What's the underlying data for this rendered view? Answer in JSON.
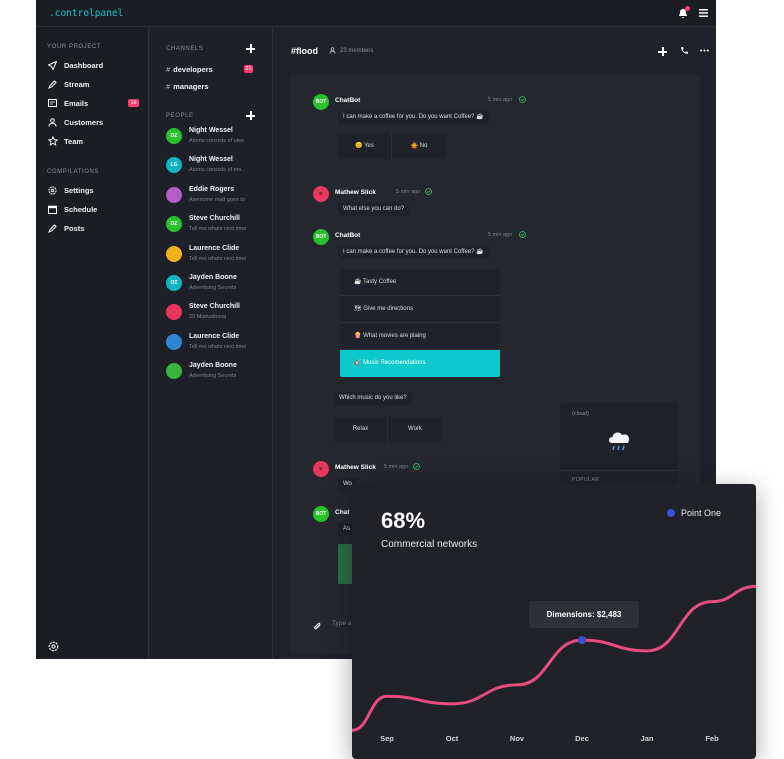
{
  "app": {
    "brand": ".controlpanel",
    "sidebar": {
      "section1": "YOUR PROJECT",
      "items1": [
        {
          "label": "Dashboard",
          "icon": "send-icon"
        },
        {
          "label": "Stream",
          "icon": "pencil-icon"
        },
        {
          "label": "Emails",
          "icon": "mail-icon",
          "badge": "16"
        },
        {
          "label": "Customers",
          "icon": "users-icon"
        },
        {
          "label": "Team",
          "icon": "star-icon"
        }
      ],
      "section2": "COMPILATIONS",
      "items2": [
        {
          "label": "Settings",
          "icon": "gear-icon"
        },
        {
          "label": "Schedule",
          "icon": "calendar-icon"
        },
        {
          "label": "Posts",
          "icon": "pencil-icon"
        }
      ]
    },
    "channels": {
      "title": "CHANNELS",
      "list": [
        {
          "label": "developers",
          "badge": "21"
        },
        {
          "label": "managers"
        }
      ],
      "people_title": "PEOPLE",
      "people": [
        {
          "initials": "OZ",
          "name": "Night Wessel",
          "msg": "Atoms consists of ules",
          "color": "#28c22c"
        },
        {
          "initials": "LG",
          "name": "Night Wessel",
          "msg": "Atoms consists of mo..",
          "color": "#10b4c0"
        },
        {
          "initials": "",
          "name": "Eddie Rogers",
          "msg": "Awesome mad goes to",
          "color": "#b45cc8"
        },
        {
          "initials": "OZ",
          "name": "Steve Churchill",
          "msg": "Tell me whats next time",
          "color": "#28c22c"
        },
        {
          "initials": "",
          "name": "Laurence Clide",
          "msg": "Tell me whats next time",
          "color": "#f2b01e"
        },
        {
          "initials": "OZ",
          "name": "Jayden Boone",
          "msg": "Advertising Secrets",
          "color": "#10b4c0"
        },
        {
          "initials": "",
          "name": "Steve Churchill",
          "msg": "29 Motivational",
          "color": "#e8365e"
        },
        {
          "initials": "",
          "name": "Laurence Clide",
          "msg": "Tell me whats next time",
          "color": "#2f86d8"
        },
        {
          "initials": "",
          "name": "Jayden Boone",
          "msg": "Advertising Secrets",
          "color": "#38b63c"
        }
      ]
    },
    "chat": {
      "channel": "#flood",
      "members": "23 members",
      "bot_initials": "BOT",
      "messages": {
        "m1_name": "ChatBot",
        "m1_time": "5 min ago",
        "m1_text": "I can make a coffee for you. Do you want Coffee? ☕",
        "m1_yes": "😊 Yes",
        "m1_no": "🙅 No",
        "m2_name": "Mathew Slick",
        "m2_time": "5 min ago",
        "m2_text": "What else you can do?",
        "m3_name": "ChatBot",
        "m3_time": "5 min ago",
        "m3_text": "I can make a coffee for you. Do you want Coffee? ☕",
        "options": [
          "☕ Tasty Coffee",
          "🗺 Give me directions",
          "🍿 What movies are plaing",
          "🎸 Music Recomendations"
        ],
        "m4_text": "Which music do you like?",
        "m4_relax": "Relax",
        "m4_work": "Work",
        "m5_name": "Mathew Slick",
        "m5_time": "5 min ago",
        "m5_text": "Wo",
        "m6_name": "Chat",
        "m6_text": "As"
      },
      "side_card": {
        "label": "(cloud)",
        "popular": "POPULAR",
        "icon": "☁"
      },
      "input_placeholder": "Type a"
    }
  },
  "card": {
    "value": "68%",
    "subtitle": "Commercial networks",
    "legend": "Point One",
    "tooltip": "Dimensions: $2,483",
    "accent": "#e84c7d",
    "point_color": "#3c51d8"
  },
  "chart_data": {
    "type": "line",
    "categories": [
      "Sep",
      "Oct",
      "Nov",
      "Dec",
      "Jan",
      "Feb"
    ],
    "series": [
      {
        "name": "Point One",
        "values": [
          1000,
          800,
          1300,
          2483,
          2200,
          3500
        ]
      }
    ],
    "highlight": {
      "category": "Dec",
      "label": "Dimensions: $2,483"
    },
    "ylim": [
      400,
      3700
    ]
  }
}
